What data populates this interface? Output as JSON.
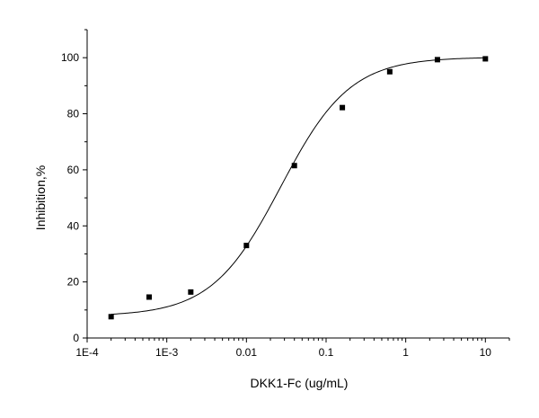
{
  "chart_data": {
    "type": "scatter",
    "xlabel": "DKK1-Fc  (ug/mL)",
    "ylabel": "Inhibition,%",
    "x_scale": "log",
    "xlim": [
      0.0001,
      20
    ],
    "ylim": [
      0,
      110
    ],
    "x_ticks": [
      {
        "value": 0.0001,
        "label": "1E-4"
      },
      {
        "value": 0.001,
        "label": "1E-3"
      },
      {
        "value": 0.01,
        "label": "0.01"
      },
      {
        "value": 0.1,
        "label": "0.1"
      },
      {
        "value": 1,
        "label": "1"
      },
      {
        "value": 10,
        "label": "10"
      }
    ],
    "y_ticks": [
      {
        "value": 0,
        "label": "0"
      },
      {
        "value": 20,
        "label": "20"
      },
      {
        "value": 40,
        "label": "40"
      },
      {
        "value": 60,
        "label": "60"
      },
      {
        "value": 80,
        "label": "80"
      },
      {
        "value": 100,
        "label": "100"
      }
    ],
    "grid": false,
    "legend": "none",
    "points": [
      {
        "x": 0.0002,
        "y": 7.6
      },
      {
        "x": 0.0006,
        "y": 14.6
      },
      {
        "x": 0.002,
        "y": 16.4
      },
      {
        "x": 0.01,
        "y": 33.0
      },
      {
        "x": 0.04,
        "y": 61.5
      },
      {
        "x": 0.16,
        "y": 82.2
      },
      {
        "x": 0.63,
        "y": 95.0
      },
      {
        "x": 2.5,
        "y": 99.3
      },
      {
        "x": 10,
        "y": 99.6
      }
    ],
    "fit": {
      "model": "4PL",
      "bottom": 7.8,
      "top": 100.2,
      "ec50": 0.027,
      "hill": 1.0
    }
  }
}
